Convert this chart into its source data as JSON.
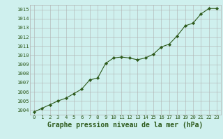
{
  "x": [
    0,
    1,
    2,
    3,
    4,
    5,
    6,
    7,
    8,
    9,
    10,
    11,
    12,
    13,
    14,
    15,
    16,
    17,
    18,
    19,
    20,
    21,
    22,
    23
  ],
  "y": [
    1003.8,
    1004.2,
    1004.6,
    1005.0,
    1005.3,
    1005.8,
    1006.3,
    1007.3,
    1007.5,
    1009.1,
    1009.7,
    1009.8,
    1009.7,
    1009.5,
    1009.7,
    1010.1,
    1010.9,
    1011.2,
    1012.1,
    1013.2,
    1013.5,
    1014.5,
    1015.1,
    1015.1
  ],
  "line_color": "#2d5a1b",
  "marker": "D",
  "marker_size": 2.2,
  "bg_color": "#cff0ee",
  "grid_color": "#b0b0b0",
  "xlabel_label": "Graphe pression niveau de la mer (hPa)",
  "ylim": [
    1003.5,
    1015.5
  ],
  "yticks": [
    1004,
    1005,
    1006,
    1007,
    1008,
    1009,
    1010,
    1011,
    1012,
    1013,
    1014,
    1015
  ],
  "xticks": [
    0,
    1,
    2,
    3,
    4,
    5,
    6,
    7,
    8,
    9,
    10,
    11,
    12,
    13,
    14,
    15,
    16,
    17,
    18,
    19,
    20,
    21,
    22,
    23
  ],
  "tick_fontsize": 5.2,
  "xlabel_fontsize": 7.0,
  "tick_color": "#2d5a1b",
  "linewidth": 0.8
}
